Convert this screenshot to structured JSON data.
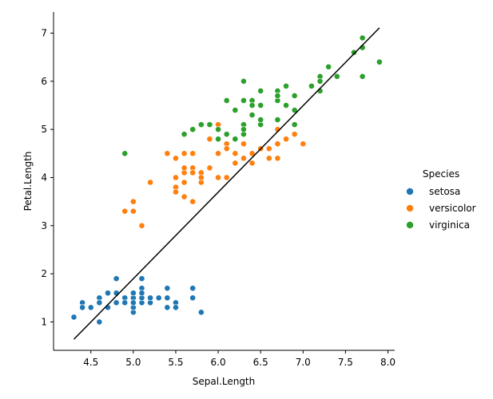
{
  "chart_data": {
    "type": "scatter",
    "xlabel": "Sepal.Length",
    "ylabel": "Petal.Length",
    "xlim": [
      4.06,
      8.08
    ],
    "ylim": [
      0.41,
      7.44
    ],
    "xticks": [
      4.5,
      5.0,
      5.5,
      6.0,
      6.5,
      7.0,
      7.5,
      8.0
    ],
    "xtick_labels": [
      "4.5",
      "5.0",
      "5.5",
      "6.0",
      "6.5",
      "7.0",
      "7.5",
      "8.0"
    ],
    "yticks": [
      1,
      2,
      3,
      4,
      5,
      6,
      7
    ],
    "ytick_labels": [
      "1",
      "2",
      "3",
      "4",
      "5",
      "6",
      "7"
    ],
    "grid": false,
    "legend": {
      "title": "Species",
      "placement": "right"
    },
    "fit_line": {
      "x": [
        4.3,
        7.9
      ],
      "y": [
        0.64,
        7.11
      ],
      "color": "#000000"
    },
    "series": [
      {
        "name": "setosa",
        "color": "#1f77b4",
        "points": [
          [
            5.1,
            1.4
          ],
          [
            4.9,
            1.4
          ],
          [
            4.7,
            1.3
          ],
          [
            4.6,
            1.5
          ],
          [
            5.0,
            1.4
          ],
          [
            5.4,
            1.7
          ],
          [
            4.6,
            1.4
          ],
          [
            5.0,
            1.5
          ],
          [
            4.4,
            1.4
          ],
          [
            4.9,
            1.5
          ],
          [
            5.4,
            1.5
          ],
          [
            4.8,
            1.6
          ],
          [
            4.8,
            1.4
          ],
          [
            4.3,
            1.1
          ],
          [
            5.8,
            1.2
          ],
          [
            5.7,
            1.5
          ],
          [
            5.4,
            1.3
          ],
          [
            5.1,
            1.4
          ],
          [
            5.7,
            1.7
          ],
          [
            5.1,
            1.5
          ],
          [
            5.4,
            1.7
          ],
          [
            5.1,
            1.5
          ],
          [
            4.6,
            1.0
          ],
          [
            5.1,
            1.7
          ],
          [
            4.8,
            1.9
          ],
          [
            5.0,
            1.6
          ],
          [
            5.0,
            1.6
          ],
          [
            5.2,
            1.5
          ],
          [
            5.2,
            1.4
          ],
          [
            4.7,
            1.6
          ],
          [
            4.8,
            1.6
          ],
          [
            5.4,
            1.5
          ],
          [
            5.2,
            1.5
          ],
          [
            5.5,
            1.4
          ],
          [
            4.9,
            1.5
          ],
          [
            5.0,
            1.2
          ],
          [
            5.5,
            1.3
          ],
          [
            4.9,
            1.4
          ],
          [
            4.4,
            1.3
          ],
          [
            5.1,
            1.5
          ],
          [
            5.0,
            1.3
          ],
          [
            4.5,
            1.3
          ],
          [
            4.4,
            1.3
          ],
          [
            5.0,
            1.6
          ],
          [
            5.1,
            1.9
          ],
          [
            4.8,
            1.4
          ],
          [
            5.1,
            1.6
          ],
          [
            4.6,
            1.4
          ],
          [
            5.3,
            1.5
          ],
          [
            5.0,
            1.4
          ]
        ]
      },
      {
        "name": "versicolor",
        "color": "#ff7f0e",
        "points": [
          [
            7.0,
            4.7
          ],
          [
            6.4,
            4.5
          ],
          [
            6.9,
            4.9
          ],
          [
            5.5,
            4.0
          ],
          [
            6.5,
            4.6
          ],
          [
            5.7,
            4.5
          ],
          [
            6.3,
            4.7
          ],
          [
            4.9,
            3.3
          ],
          [
            6.6,
            4.6
          ],
          [
            5.2,
            3.9
          ],
          [
            5.0,
            3.5
          ],
          [
            5.9,
            4.2
          ],
          [
            6.0,
            4.0
          ],
          [
            6.1,
            4.7
          ],
          [
            5.6,
            3.6
          ],
          [
            6.7,
            4.4
          ],
          [
            5.6,
            4.5
          ],
          [
            5.8,
            4.1
          ],
          [
            6.2,
            4.5
          ],
          [
            5.6,
            3.9
          ],
          [
            5.9,
            4.8
          ],
          [
            6.1,
            4.0
          ],
          [
            6.3,
            4.9
          ],
          [
            6.1,
            4.7
          ],
          [
            6.4,
            4.3
          ],
          [
            6.6,
            4.4
          ],
          [
            6.8,
            4.8
          ],
          [
            6.7,
            5.0
          ],
          [
            6.0,
            4.5
          ],
          [
            5.7,
            3.5
          ],
          [
            5.5,
            3.8
          ],
          [
            5.5,
            3.7
          ],
          [
            5.8,
            3.9
          ],
          [
            6.0,
            5.1
          ],
          [
            5.4,
            4.5
          ],
          [
            6.0,
            4.5
          ],
          [
            6.7,
            4.7
          ],
          [
            6.3,
            4.4
          ],
          [
            5.6,
            4.1
          ],
          [
            5.5,
            4.0
          ],
          [
            5.5,
            4.4
          ],
          [
            6.1,
            4.6
          ],
          [
            5.8,
            4.0
          ],
          [
            5.0,
            3.3
          ],
          [
            5.6,
            4.2
          ],
          [
            5.7,
            4.2
          ],
          [
            5.7,
            4.2
          ],
          [
            6.2,
            4.3
          ],
          [
            5.1,
            3.0
          ],
          [
            5.7,
            4.1
          ]
        ]
      },
      {
        "name": "virginica",
        "color": "#2ca02c",
        "points": [
          [
            6.3,
            6.0
          ],
          [
            5.8,
            5.1
          ],
          [
            7.1,
            5.9
          ],
          [
            6.3,
            5.6
          ],
          [
            6.5,
            5.8
          ],
          [
            7.6,
            6.6
          ],
          [
            4.9,
            4.5
          ],
          [
            7.3,
            6.3
          ],
          [
            6.7,
            5.8
          ],
          [
            7.2,
            6.1
          ],
          [
            6.5,
            5.1
          ],
          [
            6.4,
            5.3
          ],
          [
            6.8,
            5.5
          ],
          [
            5.7,
            5.0
          ],
          [
            5.8,
            5.1
          ],
          [
            6.4,
            5.3
          ],
          [
            6.5,
            5.5
          ],
          [
            7.7,
            6.7
          ],
          [
            7.7,
            6.9
          ],
          [
            6.0,
            5.0
          ],
          [
            6.9,
            5.7
          ],
          [
            5.6,
            4.9
          ],
          [
            7.7,
            6.7
          ],
          [
            6.3,
            4.9
          ],
          [
            6.7,
            5.7
          ],
          [
            7.2,
            6.0
          ],
          [
            6.2,
            4.8
          ],
          [
            6.1,
            4.9
          ],
          [
            6.4,
            5.6
          ],
          [
            7.2,
            5.8
          ],
          [
            7.4,
            6.1
          ],
          [
            7.9,
            6.4
          ],
          [
            6.4,
            5.6
          ],
          [
            6.3,
            5.1
          ],
          [
            6.1,
            5.6
          ],
          [
            7.7,
            6.1
          ],
          [
            6.3,
            5.6
          ],
          [
            6.4,
            5.5
          ],
          [
            6.0,
            4.8
          ],
          [
            6.9,
            5.4
          ],
          [
            6.7,
            5.6
          ],
          [
            6.9,
            5.1
          ],
          [
            5.8,
            5.1
          ],
          [
            6.8,
            5.9
          ],
          [
            6.7,
            5.7
          ],
          [
            6.7,
            5.2
          ],
          [
            6.3,
            5.0
          ],
          [
            6.5,
            5.2
          ],
          [
            6.2,
            5.4
          ],
          [
            5.9,
            5.1
          ]
        ]
      }
    ]
  }
}
